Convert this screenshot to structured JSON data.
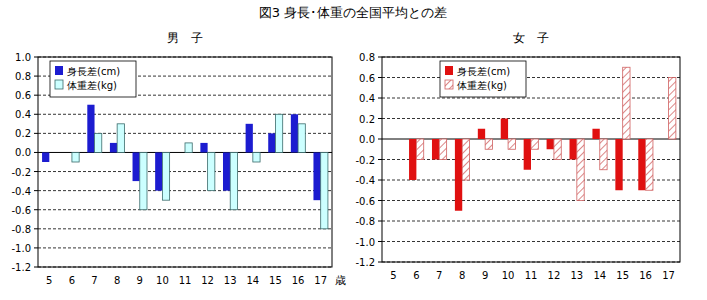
{
  "title": "図3  身長･体重の全国平均との差",
  "chart_data": [
    {
      "type": "bar",
      "title": "男　子",
      "xlabel": "歳",
      "categories": [
        "5",
        "6",
        "7",
        "8",
        "9",
        "10",
        "11",
        "12",
        "13",
        "14",
        "15",
        "16",
        "17"
      ],
      "series": [
        {
          "name": "身長差(cm)",
          "color": "#1c1cd0",
          "values": [
            -0.1,
            0,
            0.5,
            0.1,
            -0.3,
            -0.4,
            0,
            0.1,
            -0.4,
            0.3,
            0.2,
            0.4,
            -0.5
          ]
        },
        {
          "name": "体重差(kg)",
          "color": "#ccffff",
          "values": [
            0,
            -0.1,
            0.2,
            0.3,
            -0.6,
            -0.5,
            0.1,
            -0.4,
            -0.6,
            -0.1,
            0.4,
            0.3,
            -0.8
          ]
        }
      ],
      "ylim": [
        -1.2,
        1.0
      ],
      "yticks": [
        {
          "value": 1.0,
          "label": "1.0"
        },
        0.8,
        0.6,
        0.4,
        0.2,
        {
          "value": 0,
          "label": "0.0"
        },
        -0.2,
        -0.4,
        -0.6,
        -0.8,
        {
          "value": -1.0,
          "label": "-1.0"
        },
        -1.2
      ],
      "grid": true,
      "legend": "upper left"
    },
    {
      "type": "bar",
      "title": "女　子",
      "categories": [
        "5",
        "6",
        "7",
        "8",
        "9",
        "10",
        "11",
        "12",
        "13",
        "14",
        "15",
        "16",
        "17"
      ],
      "series": [
        {
          "name": "身長差(cm)",
          "color": "#e01010",
          "values": [
            0,
            -0.4,
            -0.2,
            -0.7,
            0.1,
            0.2,
            -0.3,
            -0.1,
            -0.2,
            0.1,
            -0.5,
            -0.5,
            0
          ]
        },
        {
          "name": "体重差(kg)",
          "color": "#d06060",
          "line_style": "hatched",
          "values": [
            0,
            -0.2,
            -0.2,
            -0.4,
            -0.1,
            -0.1,
            -0.1,
            -0.2,
            -0.6,
            -0.3,
            0.7,
            -0.5,
            0.6
          ]
        }
      ],
      "ylim": [
        -1.2,
        0.8
      ],
      "yticks": [
        0.8,
        0.6,
        0.4,
        0.2,
        {
          "value": 0,
          "label": "0.0"
        },
        -0.2,
        -0.4,
        -0.6,
        -0.8,
        {
          "value": -1.0,
          "label": "-1.0"
        },
        -1.2
      ],
      "grid": true,
      "legend": "upper left"
    }
  ]
}
